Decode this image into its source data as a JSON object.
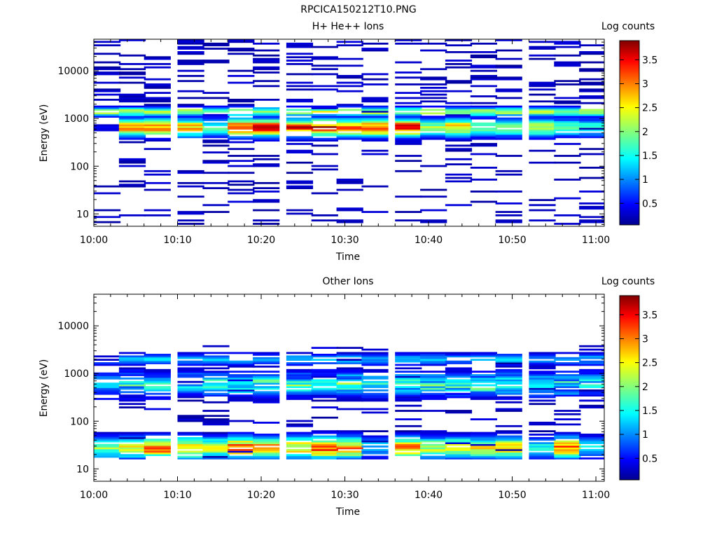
{
  "figure_title": "RPCICA150212T10.PNG",
  "panels": [
    {
      "title": "H+ He++ Ions",
      "colorbar_label": "Log counts",
      "ylabel": "Energy (eV)",
      "xlabel": "Time"
    },
    {
      "title": "Other Ions",
      "colorbar_label": "Log counts",
      "ylabel": "Energy (eV)",
      "xlabel": "Time"
    }
  ],
  "chart_data": [
    {
      "type": "heatmap",
      "title": "H+ He++ Ions",
      "xlabel": "Time",
      "ylabel": "Energy (eV)",
      "y_scale": "log",
      "ylim": [
        5.5,
        46000
      ],
      "xlim": [
        "10:00",
        "11:01"
      ],
      "x_ticks": [
        "10:00",
        "10:10",
        "10:20",
        "10:30",
        "10:40",
        "10:50",
        "11:00"
      ],
      "y_ticks": [
        "10",
        "100",
        "1000",
        "10000"
      ],
      "colorbar": {
        "label": "Log counts",
        "range": [
          0.05,
          3.9
        ],
        "ticks": [
          "0.5",
          "1",
          "1.5",
          "2",
          "2.5",
          "3",
          "3.5"
        ]
      },
      "column_width_min": 3.2,
      "columns_start": [
        "10:00",
        "10:03",
        "10:06",
        "10:10",
        "10:13",
        "10:16",
        "10:19",
        "10:23",
        "10:26",
        "10:29",
        "10:32",
        "10:36",
        "10:39",
        "10:42",
        "10:45",
        "10:48",
        "10:52",
        "10:55",
        "10:58"
      ],
      "profile": {
        "background_levels": [
          [
            30,
            1.6
          ],
          [
            40,
            1.0
          ],
          [
            55,
            0.6
          ],
          [
            100,
            0.3
          ]
        ],
        "peak_energy_eV": 650,
        "peak_value_by_column": [
          0.4,
          3.3,
          3.2,
          3.0,
          1.9,
          3.6,
          3.6,
          3.5,
          3.7,
          3.2,
          3.6,
          3.6,
          2.2,
          3.0,
          2.0,
          2.2,
          2.6,
          2.0,
          1.8
        ],
        "band_energy_eV": 1400,
        "band_value": 2.4
      },
      "grid": false,
      "legend": "none"
    },
    {
      "type": "heatmap",
      "title": "Other Ions",
      "xlabel": "Time",
      "ylabel": "Energy (eV)",
      "y_scale": "log",
      "ylim": [
        5.5,
        46000
      ],
      "xlim": [
        "10:00",
        "11:01"
      ],
      "x_ticks": [
        "10:00",
        "10:10",
        "10:20",
        "10:30",
        "10:40",
        "10:50",
        "11:00"
      ],
      "y_ticks": [
        "10",
        "100",
        "1000",
        "10000"
      ],
      "colorbar": {
        "label": "Log counts",
        "range": [
          0.05,
          3.9
        ],
        "ticks": [
          "0.5",
          "1",
          "1.5",
          "2",
          "2.5",
          "3",
          "3.5"
        ]
      },
      "column_width_min": 3.2,
      "columns_start": [
        "10:00",
        "10:03",
        "10:06",
        "10:10",
        "10:13",
        "10:16",
        "10:19",
        "10:23",
        "10:26",
        "10:29",
        "10:32",
        "10:36",
        "10:39",
        "10:42",
        "10:45",
        "10:48",
        "10:52",
        "10:55",
        "10:58"
      ],
      "profile": {
        "low_energy_peak_eV": 28,
        "low_peak_value_by_column": [
          2.3,
          2.6,
          3.4,
          3.2,
          2.4,
          3.5,
          3.3,
          3.0,
          3.4,
          3.3,
          1.4,
          3.2,
          2.5,
          2.7,
          2.6,
          2.8,
          1.6,
          3.2,
          1.6
        ],
        "mid_band_energy_eV": 600,
        "mid_band_value": 1.8,
        "high_band_energy_eV": 2000,
        "high_band_value": 1.3
      },
      "grid": false,
      "legend": "none"
    }
  ]
}
